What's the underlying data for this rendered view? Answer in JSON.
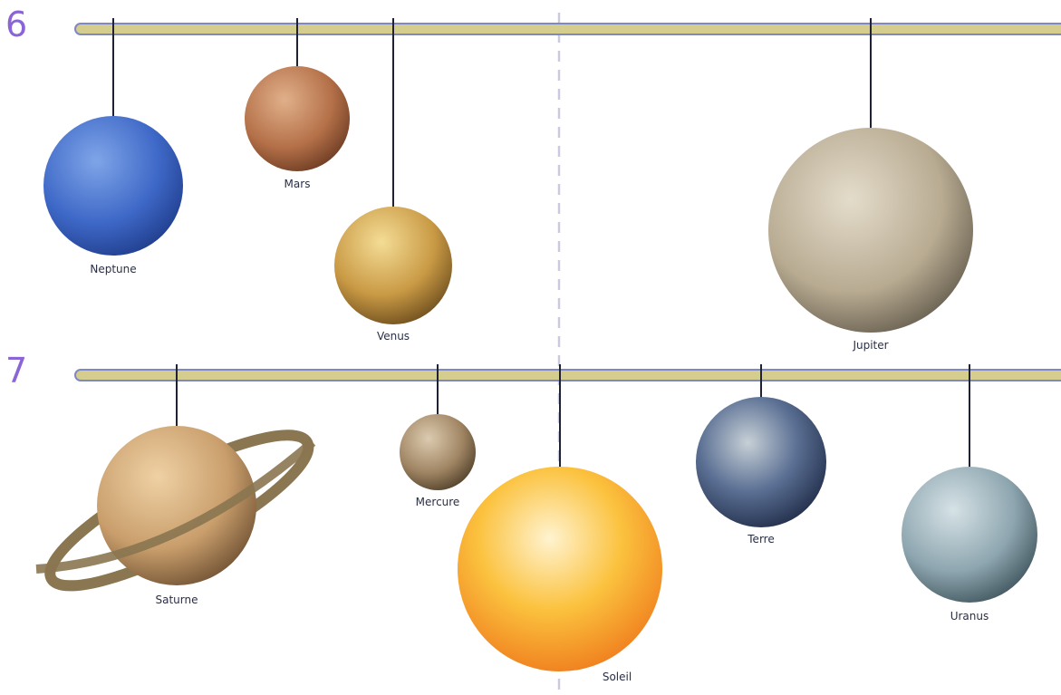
{
  "rows": [
    {
      "number": "6",
      "planets": [
        {
          "label": "Neptune"
        },
        {
          "label": "Mars"
        },
        {
          "label": "Venus"
        },
        {
          "label": "Jupiter"
        }
      ]
    },
    {
      "number": "7",
      "planets": [
        {
          "label": "Saturne"
        },
        {
          "label": "Mercure"
        },
        {
          "label": "Soleil"
        },
        {
          "label": "Terre"
        },
        {
          "label": "Uranus"
        }
      ]
    }
  ]
}
